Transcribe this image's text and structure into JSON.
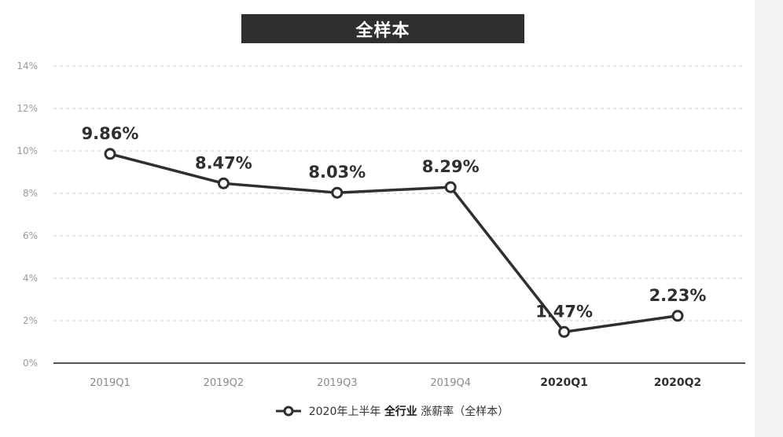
{
  "chart_data": {
    "type": "line",
    "title": "全样本",
    "categories": [
      "2019Q1",
      "2019Q2",
      "2019Q3",
      "2019Q4",
      "2020Q1",
      "2020Q2"
    ],
    "bold_categories": [
      "2020Q1",
      "2020Q2"
    ],
    "values": [
      9.86,
      8.47,
      8.03,
      8.29,
      1.47,
      2.23
    ],
    "data_labels": [
      "9.86%",
      "8.47%",
      "8.03%",
      "8.29%",
      "1.47%",
      "2.23%"
    ],
    "y_ticks": [
      0,
      2,
      4,
      6,
      8,
      10,
      12,
      14
    ],
    "y_tick_labels": [
      "0%",
      "2%",
      "4%",
      "6%",
      "8%",
      "10%",
      "12%",
      "14%"
    ],
    "ylim": [
      0,
      14
    ],
    "grid": "horizontal-dashed",
    "legend_position": "bottom",
    "legend": {
      "prefix": "2020年上半年",
      "emphasis": "全行业",
      "suffix": "涨薪率（全样本）"
    },
    "colors": {
      "line": "#2f2f2f",
      "grid": "#cfcfcf",
      "title_bg": "#2f2f2f"
    }
  }
}
